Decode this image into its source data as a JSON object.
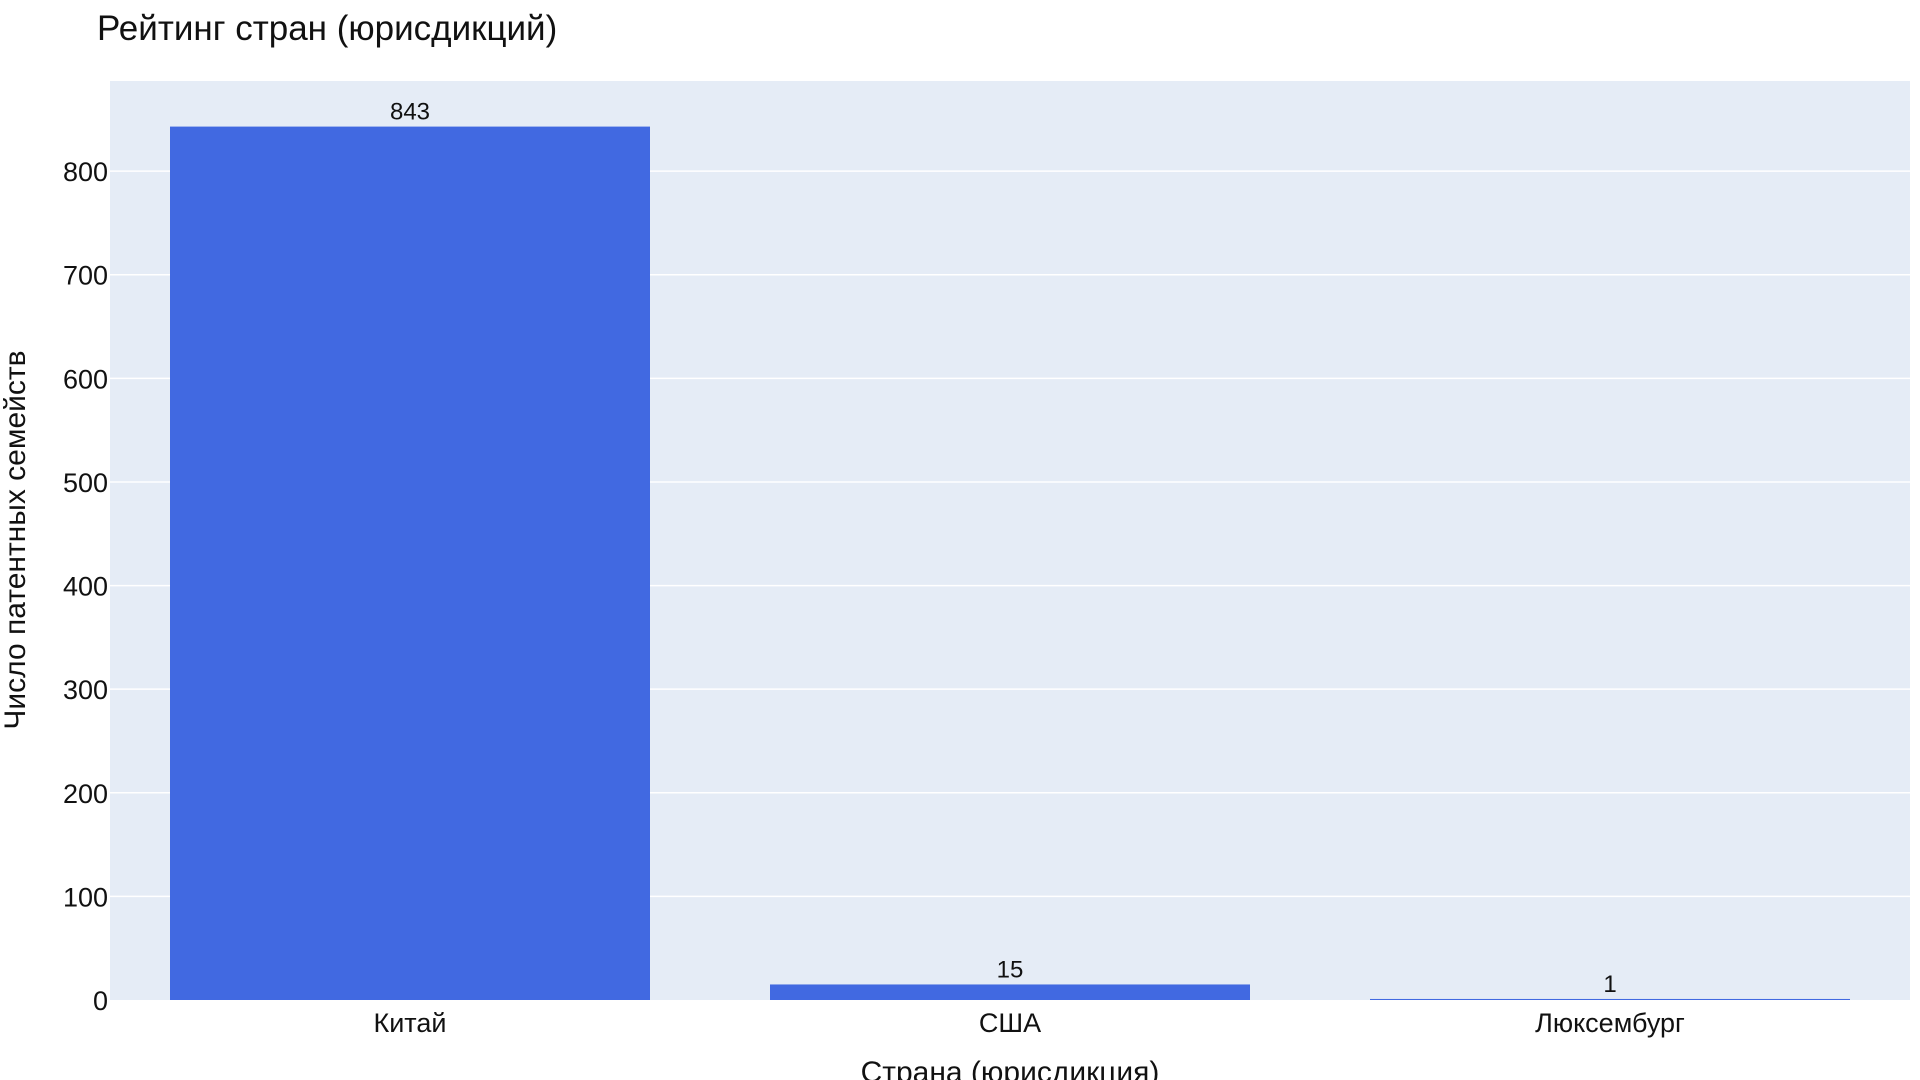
{
  "chart_data": {
    "type": "bar",
    "title": "Рейтинг стран (юрисдикций)",
    "xlabel": "Страна (юрисдикция)",
    "ylabel": "Число патентных семейств",
    "categories": [
      "Китай",
      "США",
      "Люксембург"
    ],
    "values": [
      843,
      15,
      1
    ],
    "ylim": [
      0,
      887
    ],
    "yticks": [
      0,
      100,
      200,
      300,
      400,
      500,
      600,
      700,
      800
    ],
    "grid": true,
    "legend": "none",
    "colors": {
      "bar": "#4169e1",
      "plot_background": "#e5ecf6",
      "grid": "#ffffff"
    }
  }
}
